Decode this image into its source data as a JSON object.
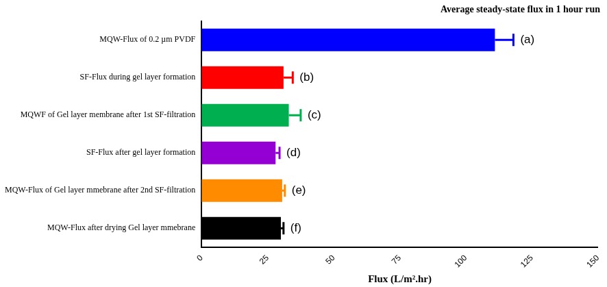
{
  "chart_data": {
    "type": "bar",
    "orientation": "horizontal",
    "title": "Average steady-state flux in 1 hour run",
    "x_label": "Flux (L/m².hr)",
    "categories": [
      "MQW-Flux of 0.2 µm PVDF",
      "SF-Flux during gel layer formation",
      "MQWF of Gel layer membrane after 1st SF-filtration",
      "SF-Flux after gel layer formation",
      "MQW-Flux of Gel layer mmebrane after 2nd SF-filtration",
      "MQW-Flux after drying Gel layer mmebrane"
    ],
    "values": [
      111,
      31,
      33,
      28,
      30.5,
      30
    ],
    "errors": [
      7,
      3.5,
      4.5,
      1.5,
      1,
      1
    ],
    "colors": [
      "#0000ff",
      "#ff0000",
      "#00b050",
      "#9400d3",
      "#ff8c00",
      "#000000"
    ],
    "annotations": [
      "(a)",
      "(b)",
      "(c)",
      "(d)",
      "(e)",
      "(f)"
    ],
    "xlim": [
      0,
      150
    ],
    "xticks": [
      0,
      25,
      50,
      75,
      100,
      125,
      150
    ],
    "grid": false
  }
}
